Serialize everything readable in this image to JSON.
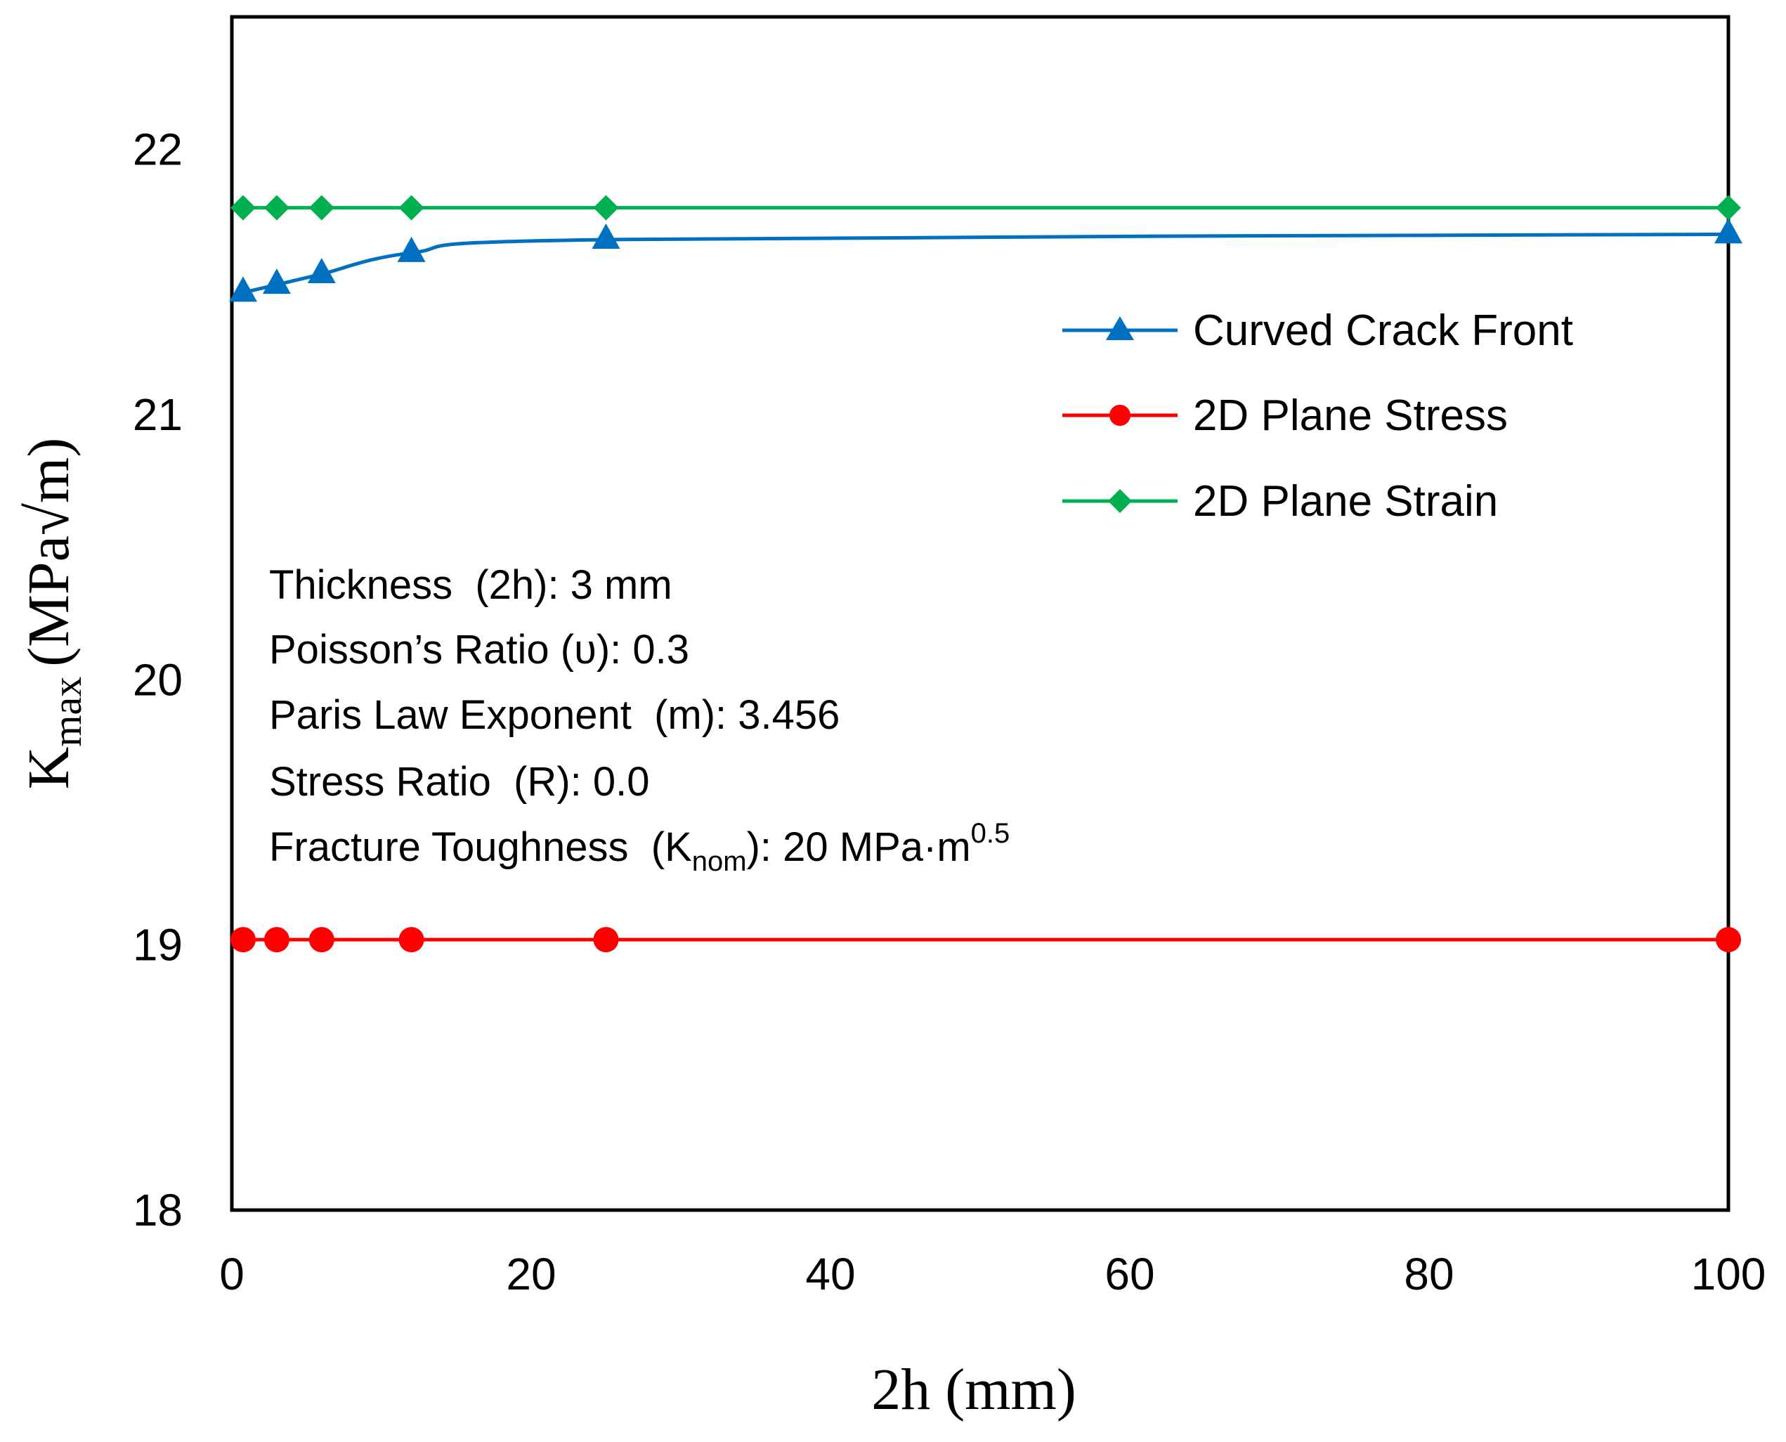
{
  "chart_data": {
    "type": "line",
    "title": "",
    "xlabel": "2h (mm)",
    "ylabel": {
      "base": "K",
      "subscript": "max",
      "unit": "(MPa√m)"
    },
    "xlim": [
      0,
      100
    ],
    "ylim": [
      18,
      22.5
    ],
    "xticks": [
      0,
      20,
      40,
      60,
      80,
      100
    ],
    "yticks": [
      18,
      19,
      20,
      21,
      22
    ],
    "xtick_labels": [
      "0",
      "20",
      "40",
      "60",
      "80",
      "100"
    ],
    "ytick_labels": [
      "18",
      "19",
      "20",
      "21",
      "22"
    ],
    "grid": false,
    "legend_position": "top-right",
    "series": [
      {
        "name": "Curved Crack Front",
        "color": "#0070C0",
        "marker": "triangle",
        "smooth": true,
        "x": [
          0.75,
          3,
          6,
          12,
          25,
          100
        ],
        "y": [
          21.46,
          21.49,
          21.53,
          21.61,
          21.66,
          21.68
        ]
      },
      {
        "name": "2D Plane Stress",
        "color": "#FF0000",
        "marker": "circle",
        "smooth": false,
        "x": [
          0.75,
          3,
          6,
          12,
          25,
          100
        ],
        "y": [
          19.02,
          19.02,
          19.02,
          19.02,
          19.02,
          19.02
        ]
      },
      {
        "name": "2D Plane Strain",
        "color": "#00B050",
        "marker": "diamond",
        "smooth": false,
        "x": [
          0.75,
          3,
          6,
          12,
          25,
          100
        ],
        "y": [
          21.78,
          21.78,
          21.78,
          21.78,
          21.78,
          21.78
        ]
      }
    ],
    "annotations": [
      {
        "text": "Thickness  (2h): 3 mm"
      },
      {
        "text": "Poisson’s Ratio (υ): 0.3"
      },
      {
        "text": "Paris Law Exponent  (m): 3.456"
      },
      {
        "text": "Stress Ratio  (R): 0.0"
      },
      {
        "text": "Fracture Toughness  (K",
        "sub": "nom",
        "mid": "): 20 MPa·m",
        "sup": "0.5"
      }
    ]
  }
}
